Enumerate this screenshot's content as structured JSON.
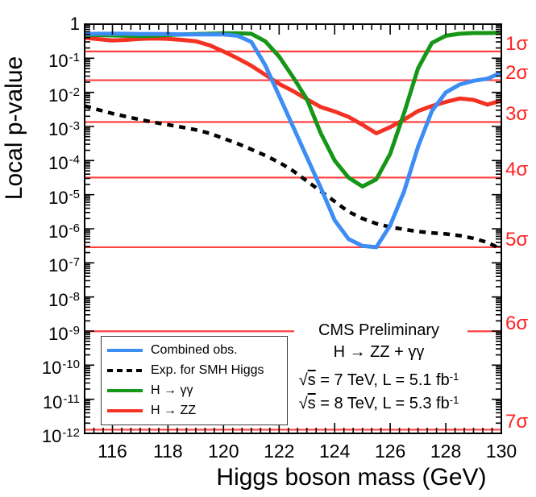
{
  "chart_data": {
    "type": "line",
    "title": "",
    "xlabel": "Higgs boson mass (GeV)",
    "ylabel": "Local p-value",
    "x_range": [
      115,
      130
    ],
    "y_log_range": [
      0,
      -12
    ],
    "x_major_ticks": [
      116,
      118,
      120,
      122,
      124,
      126,
      128,
      130
    ],
    "y_tick_exponents": [
      0,
      -1,
      -2,
      -3,
      -4,
      -5,
      -6,
      -7,
      -8,
      -9,
      -10,
      -11,
      -12
    ],
    "grid": false,
    "legend_position": "bottom-left",
    "x": [
      115,
      115.5,
      116,
      116.5,
      117,
      117.5,
      118,
      118.5,
      119,
      119.5,
      120,
      120.5,
      121,
      121.5,
      122,
      122.5,
      123,
      123.5,
      124,
      124.5,
      125,
      125.5,
      126,
      126.5,
      127,
      127.5,
      128,
      128.5,
      129,
      129.5,
      130
    ],
    "series": [
      {
        "id": "combined-obs",
        "name": "Combined obs.",
        "color": "#3d8df5",
        "style": "solid",
        "width": 5,
        "log10_p": [
          -0.29,
          -0.28,
          -0.28,
          -0.28,
          -0.29,
          -0.29,
          -0.29,
          -0.3,
          -0.3,
          -0.3,
          -0.3,
          -0.34,
          -0.52,
          -1.2,
          -2.1,
          -3.0,
          -3.9,
          -4.8,
          -5.75,
          -6.3,
          -6.5,
          -6.54,
          -5.9,
          -4.9,
          -3.6,
          -2.55,
          -2.0,
          -1.77,
          -1.66,
          -1.6,
          -1.42
        ]
      },
      {
        "id": "expected-smh",
        "name": "Exp. for SMH Higgs",
        "color": "#000000",
        "style": "dashed",
        "width": 4.5,
        "log10_p": [
          -2.4,
          -2.51,
          -2.62,
          -2.71,
          -2.8,
          -2.88,
          -2.95,
          -3.02,
          -3.1,
          -3.2,
          -3.35,
          -3.5,
          -3.67,
          -3.85,
          -4.05,
          -4.3,
          -4.6,
          -4.9,
          -5.2,
          -5.5,
          -5.7,
          -5.85,
          -5.95,
          -6.02,
          -6.08,
          -6.12,
          -6.15,
          -6.2,
          -6.28,
          -6.4,
          -6.6
        ]
      },
      {
        "id": "h-gamma-gamma",
        "name": "H → γγ",
        "color": "#169616",
        "style": "solid",
        "width": 5,
        "log10_p": [
          -0.31,
          -0.32,
          -0.33,
          -0.34,
          -0.35,
          -0.34,
          -0.32,
          -0.3,
          -0.29,
          -0.28,
          -0.27,
          -0.27,
          -0.28,
          -0.5,
          -0.95,
          -1.55,
          -2.2,
          -3.2,
          -4.0,
          -4.5,
          -4.76,
          -4.55,
          -3.8,
          -2.6,
          -1.3,
          -0.55,
          -0.34,
          -0.28,
          -0.26,
          -0.26,
          -0.25
        ]
      },
      {
        "id": "h-zz",
        "name": "H → ZZ",
        "color": "#f43224",
        "style": "solid",
        "width": 5,
        "log10_p": [
          -0.4,
          -0.44,
          -0.48,
          -0.46,
          -0.43,
          -0.42,
          -0.43,
          -0.46,
          -0.5,
          -0.62,
          -0.8,
          -1.0,
          -1.22,
          -1.48,
          -1.75,
          -1.96,
          -2.2,
          -2.43,
          -2.56,
          -2.72,
          -2.95,
          -3.2,
          -3.02,
          -2.8,
          -2.55,
          -2.4,
          -2.28,
          -2.18,
          -2.22,
          -2.36,
          -2.24
        ]
      }
    ],
    "draw_order": [
      1,
      3,
      2,
      0
    ],
    "sigma_lines": [
      {
        "label": "1σ",
        "p": 0.1587
      },
      {
        "label": "2σ",
        "p": 0.02275
      },
      {
        "label": "3σ",
        "p": 0.00135
      },
      {
        "label": "4σ",
        "p": 3.17e-05
      },
      {
        "label": "5σ",
        "p": 2.87e-07
      },
      {
        "label": "6σ",
        "p": 9.87e-10,
        "gap_for_text": [
          365,
          580
        ]
      },
      {
        "label": "7σ",
        "p": 1.28e-12
      }
    ],
    "sigma_line_color": "#ff4040",
    "sigma_label_color": "#ff2222"
  },
  "annotations": {
    "lines": [
      {
        "text": "CMS Preliminary"
      },
      {
        "text": "H → ZZ + γγ"
      },
      {
        "sqrt": "s",
        "text": " = 7 TeV, L = 5.1 fb",
        "sup": "-1"
      },
      {
        "sqrt": "s",
        "text": " = 8 TeV, L = 5.3 fb",
        "sup": "-1"
      }
    ],
    "tops": [
      398,
      425,
      456,
      485
    ]
  }
}
